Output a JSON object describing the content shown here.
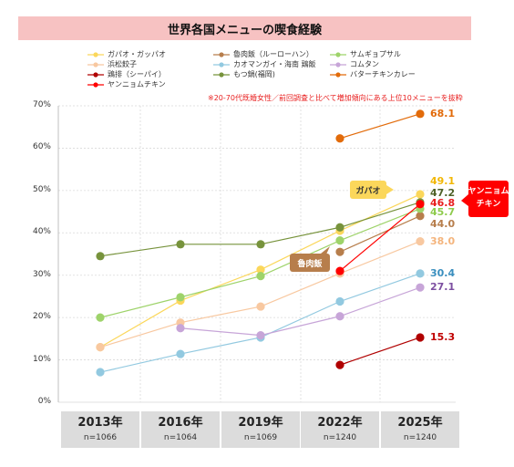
{
  "title": "世界各国メニューの喫食経験",
  "note": "※20-70代既婚女性／前回調査と比べて増加傾向にある上位10メニューを抜粋",
  "chart_data": {
    "type": "line",
    "categories": [
      "2013年",
      "2016年",
      "2019年",
      "2022年",
      "2025年"
    ],
    "category_n": [
      "n=1066",
      "n=1064",
      "n=1069",
      "n=1240",
      "n=1240"
    ],
    "ylim": [
      0,
      70
    ],
    "yticks": [
      "0%",
      "10%",
      "20%",
      "30%",
      "40%",
      "50%",
      "60%",
      "70%"
    ],
    "ytick_values": [
      0,
      10,
      20,
      30,
      40,
      50,
      60,
      70
    ],
    "grid": true,
    "legend_position": "top",
    "series": [
      {
        "name": "ガパオ・ガッパオ",
        "color": "#fbd75b",
        "values": [
          13.0,
          24.0,
          31.3,
          40.5,
          49.1
        ],
        "label": "49.1",
        "label_color": "#f2b705"
      },
      {
        "name": "魯肉飯（ルーローハン）",
        "color": "#b77e4c",
        "values": [
          null,
          null,
          null,
          35.5,
          44.0
        ],
        "label": "44.0",
        "label_color": "#b77e4c"
      },
      {
        "name": "サムギョプサル",
        "color": "#9ed36a",
        "values": [
          20.0,
          24.8,
          29.8,
          38.2,
          45.7
        ],
        "label": "45.7",
        "label_color": "#8ecb4c"
      },
      {
        "name": "浜松餃子",
        "color": "#f8c8a0",
        "values": [
          13.0,
          18.8,
          22.6,
          30.4,
          38.0
        ],
        "label": "38.0",
        "label_color": "#f4b47c"
      },
      {
        "name": "カオマンガイ・海南 鶏飯",
        "color": "#92c9e0",
        "values": [
          7.1,
          11.4,
          15.3,
          23.8,
          30.4
        ],
        "label": "30.4",
        "label_color": "#3a8fbf"
      },
      {
        "name": "コムタン",
        "color": "#c7a5d8",
        "values": [
          null,
          17.5,
          15.8,
          20.3,
          27.1
        ],
        "label": "27.1",
        "label_color": "#7d4fa1"
      },
      {
        "name": "鶏排（シーパイ）",
        "color": "#b00000",
        "values": [
          null,
          null,
          null,
          8.8,
          15.3
        ],
        "label": "15.3",
        "label_color": "#c00000"
      },
      {
        "name": "もつ鍋(福岡)",
        "color": "#77933c",
        "values": [
          34.5,
          37.3,
          37.3,
          41.3,
          47.2
        ],
        "label": "47.2",
        "label_color": "#4f6228"
      },
      {
        "name": "バターチキンカレー",
        "color": "#e26b0a",
        "values": [
          null,
          null,
          null,
          62.3,
          68.1
        ],
        "label": "68.1",
        "label_color": "#e26b0a"
      },
      {
        "name": "ヤンニョムチキン",
        "color": "#ff0000",
        "values": [
          null,
          null,
          null,
          31.0,
          46.8
        ],
        "label": "46.8",
        "label_color": "#e81e1e"
      }
    ],
    "callouts": [
      {
        "text": "ガパオ",
        "series": "ガパオ・ガッパオ"
      },
      {
        "text": "魯肉飯",
        "series": "魯肉飯（ルーローハン）"
      },
      {
        "text": "ヤンニョム\nチキン",
        "series": "ヤンニョムチキン"
      }
    ]
  }
}
